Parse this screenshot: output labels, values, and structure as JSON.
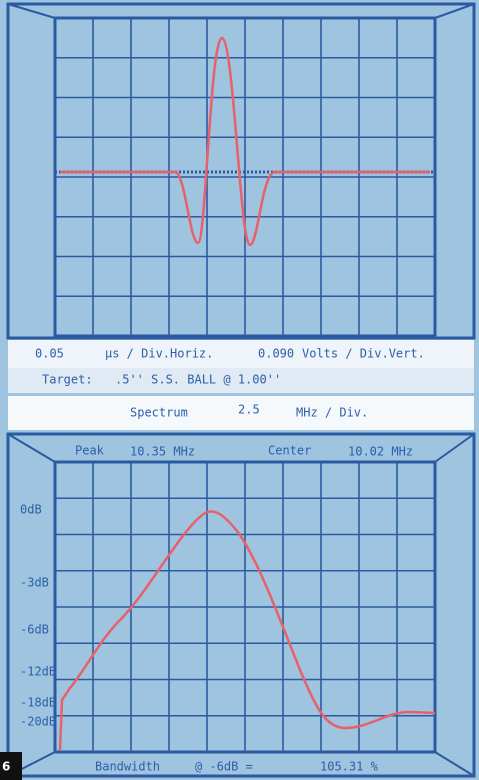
{
  "scope": {
    "horiz_value": "0.05",
    "horiz_unit": "µs / Div.Horiz.",
    "vert_value": "0.090",
    "vert_unit": "Volts / Div.Vert.",
    "target_label": "Target:",
    "target_value": ".5'' S.S. BALL @ 1.00''"
  },
  "spectrum": {
    "label": "Spectrum",
    "value": "2.5",
    "unit": "MHz / Div.",
    "peak_label": "Peak",
    "peak_value": "10.35 MHz",
    "center_label": "Center",
    "center_value": "10.02 MHz",
    "db_labels": [
      "0dB",
      "-3dB",
      "-6dB",
      "-12dB",
      "-18dB",
      "-20dB"
    ],
    "bandwidth_label": "Bandwidth",
    "bandwidth_condition": "@ -6dB =",
    "bandwidth_value": "105.31 %"
  },
  "figure_number": "6"
}
